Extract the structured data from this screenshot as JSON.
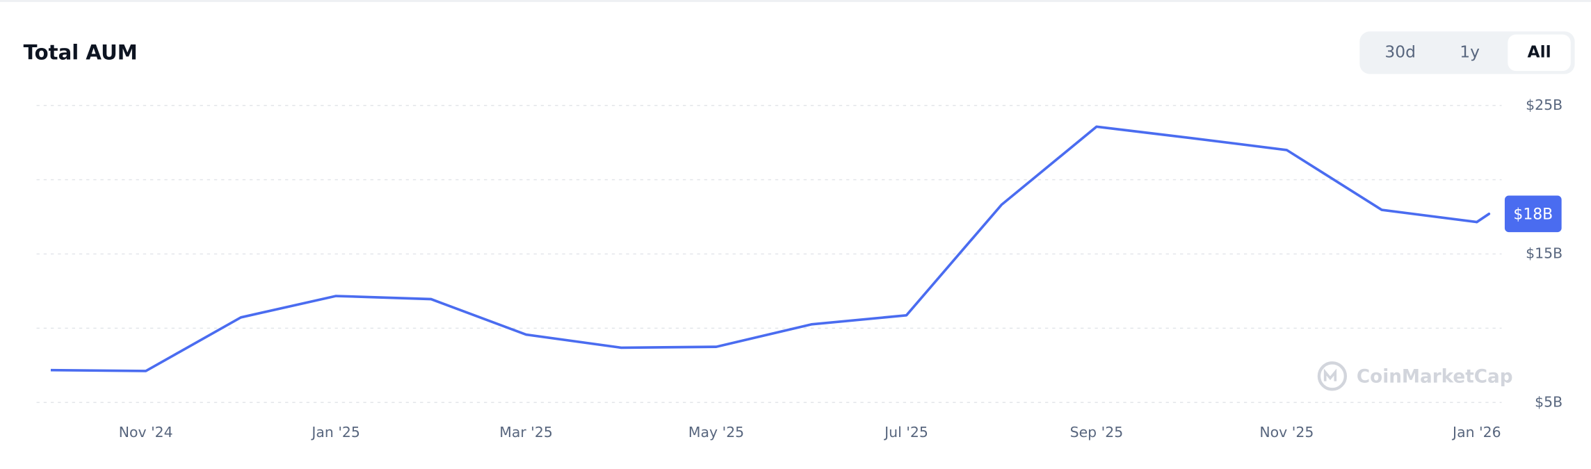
{
  "chart_data": {
    "type": "line",
    "title": "Total AUM",
    "range_buttons": [
      "30d",
      "1y",
      "All"
    ],
    "active_range": "All",
    "watermark": "CoinMarketCap",
    "categories": [
      null,
      "Nov '24",
      null,
      "Jan '25",
      null,
      "Mar '25",
      null,
      "May '25",
      null,
      "Jul '25",
      null,
      "Sep '25",
      null,
      "Nov '25",
      null,
      "Jan '26"
    ],
    "series": [
      {
        "name": "Total AUM",
        "color": "#4a6cf0",
        "values": [
          7.18,
          7.12,
          10.73,
          12.17,
          11.96,
          9.57,
          8.69,
          8.75,
          10.26,
          10.87,
          18.31,
          23.57,
          22.8,
          22.0,
          17.97,
          17.15
        ]
      }
    ],
    "current_value": 17.7,
    "current_label": "$18B",
    "ylim": [
      5,
      25
    ],
    "yticks": [
      {
        "value": 5,
        "label": "$5B"
      },
      {
        "value": 15,
        "label": "$15B"
      },
      {
        "value": 25,
        "label": "$25B"
      }
    ],
    "minor_gridlines": [
      10,
      20
    ],
    "grid": true
  }
}
